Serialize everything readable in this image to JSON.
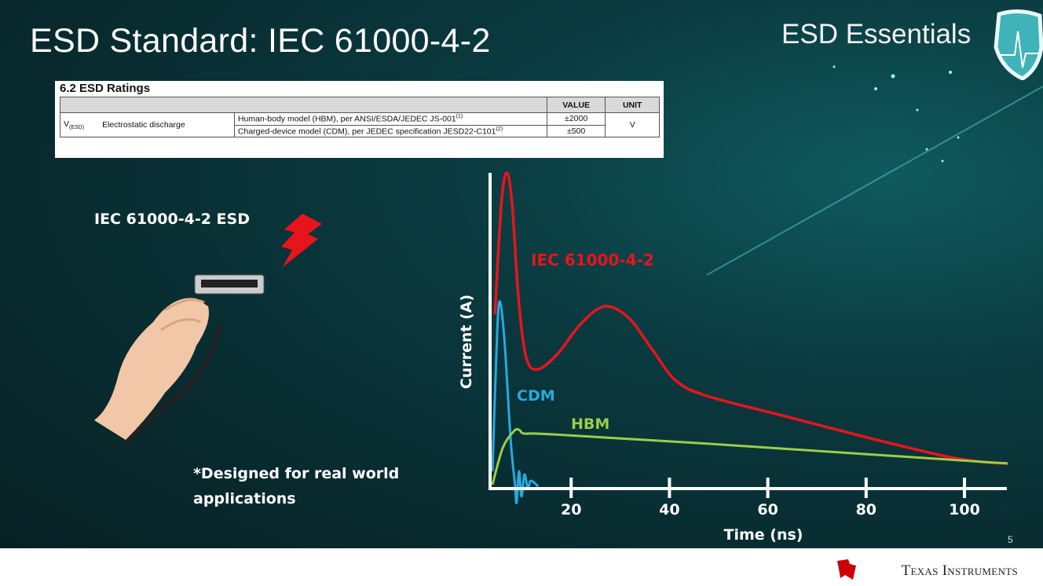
{
  "slide": {
    "title": "ESD Standard: IEC 61000-4-2",
    "brand": "ESD Essentials",
    "page_number": "5",
    "footer_logo": "Texas Instruments",
    "left_label": "IEC 61000-4-2 ESD",
    "note_line1": "*Designed for real world",
    "note_line2": "applications"
  },
  "ratings_table": {
    "heading": "6.2   ESD Ratings",
    "columns": [
      "VALUE",
      "UNIT"
    ],
    "symbol": "V",
    "symbol_sub": "(ESD)",
    "parameter": "Electrostatic discharge",
    "rows": [
      {
        "condition": "Human-body model (HBM), per ANSI/ESDA/JEDEC JS-001",
        "footnote": "(1)",
        "value": "±2000"
      },
      {
        "condition": "Charged-device model (CDM), per JEDEC specification JESD22-C101",
        "footnote": "(2)",
        "value": "±500"
      }
    ],
    "unit": "V"
  },
  "chart_data": {
    "type": "line",
    "xlabel": "Time (ns)",
    "ylabel": "Current (A)",
    "xticks": [
      20,
      40,
      60,
      80,
      100
    ],
    "xlim": [
      3,
      110
    ],
    "ylim": [
      0,
      100
    ],
    "grid": false,
    "series": [
      {
        "name": "IEC 61000-4-2",
        "color": "#e8141c",
        "x": [
          4.5,
          5.8,
          6.9,
          8,
          9.3,
          10.9,
          13.3,
          17.3,
          22,
          26.8,
          31.6,
          36.4,
          41.2,
          47.6,
          63.6,
          79.6,
          95.5,
          103.5,
          108.8
        ],
        "y": [
          55,
          90,
          100,
          90,
          60,
          41,
          37.5,
          42.5,
          52,
          57.5,
          54,
          44,
          34,
          29,
          22.5,
          16,
          10,
          8,
          7.5
        ]
      },
      {
        "name": "CDM",
        "color": "#29a8e0",
        "x": [
          4,
          4.8,
          5.4,
          6.4,
          7.7,
          8.6,
          8.9,
          9.4,
          9.9,
          10.5,
          11.2,
          11.8,
          13.3
        ],
        "y": [
          5,
          42.5,
          59,
          47.5,
          15,
          0.5,
          -5,
          5,
          -3,
          4,
          -0.5,
          2,
          0.2
        ]
      },
      {
        "name": "HBM",
        "color": "#9acd4a",
        "x": [
          4,
          6.1,
          8.5,
          9.6,
          10.5,
          15.7,
          47.6,
          79.6,
          108.8
        ],
        "y": [
          0.75,
          12.5,
          18,
          18,
          17,
          16.8,
          13.8,
          10.5,
          7.5
        ]
      }
    ]
  }
}
